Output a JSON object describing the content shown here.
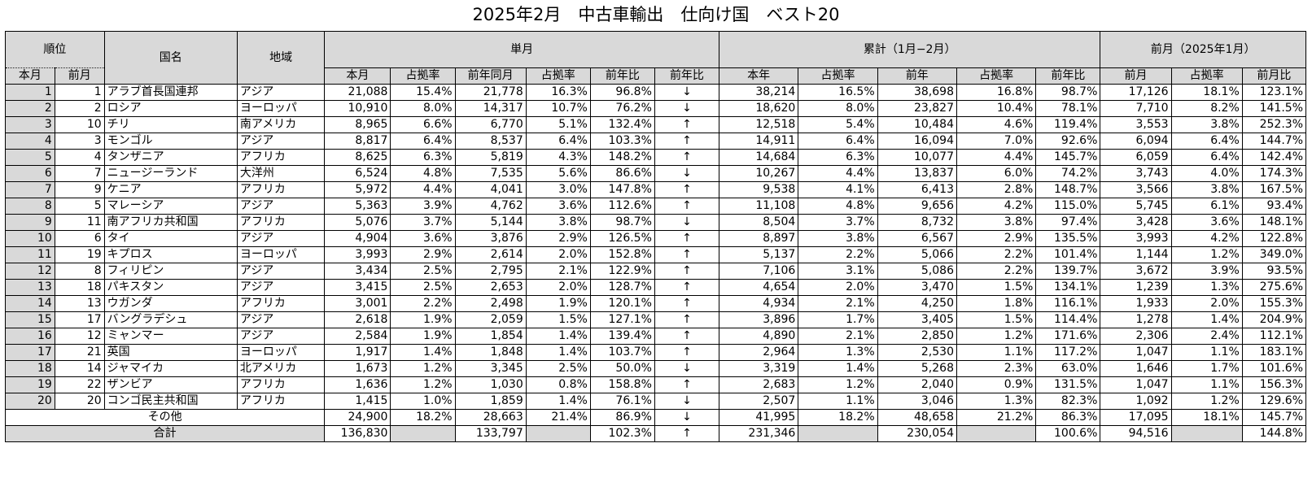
{
  "title": "2025年2月　中古車輸出　仕向け国　ベスト20",
  "headers": {
    "rank": "順位",
    "country": "国名",
    "region": "地域",
    "single_month": "単月",
    "cumulative": "累計（1月−2月）",
    "prev_month_group": "前月（2025年1月）",
    "rank_current": "本月",
    "rank_prev": "前月",
    "sm_current": "本月",
    "sm_share1": "占拠率",
    "sm_prev_year": "前年同月",
    "sm_share2": "占拠率",
    "sm_yoy": "前年比",
    "sm_yoy_arrow": "前年比",
    "cu_current": "本年",
    "cu_share1": "占拠率",
    "cu_prev": "前年",
    "cu_share2": "占拠率",
    "cu_yoy": "前年比",
    "pm_value": "前月",
    "pm_share": "占拠率",
    "pm_ratio": "前月比"
  },
  "rows": [
    {
      "rank": "1",
      "prev_rank": "1",
      "country": "アラブ首長国連邦",
      "region": "アジア",
      "sm_current": "21,088",
      "sm_share1": "15.4%",
      "sm_prev_year": "21,778",
      "sm_share2": "16.3%",
      "sm_yoy": "96.8%",
      "arrow": "↓",
      "cu_current": "38,214",
      "cu_share1": "16.5%",
      "cu_prev": "38,698",
      "cu_share2": "16.8%",
      "cu_yoy": "98.7%",
      "pm_value": "17,126",
      "pm_share": "18.1%",
      "pm_ratio": "123.1%"
    },
    {
      "rank": "2",
      "prev_rank": "2",
      "country": "ロシア",
      "region": "ヨーロッパ",
      "sm_current": "10,910",
      "sm_share1": "8.0%",
      "sm_prev_year": "14,317",
      "sm_share2": "10.7%",
      "sm_yoy": "76.2%",
      "arrow": "↓",
      "cu_current": "18,620",
      "cu_share1": "8.0%",
      "cu_prev": "23,827",
      "cu_share2": "10.4%",
      "cu_yoy": "78.1%",
      "pm_value": "7,710",
      "pm_share": "8.2%",
      "pm_ratio": "141.5%"
    },
    {
      "rank": "3",
      "prev_rank": "10",
      "country": "チリ",
      "region": "南アメリカ",
      "sm_current": "8,965",
      "sm_share1": "6.6%",
      "sm_prev_year": "6,770",
      "sm_share2": "5.1%",
      "sm_yoy": "132.4%",
      "arrow": "↑",
      "cu_current": "12,518",
      "cu_share1": "5.4%",
      "cu_prev": "10,484",
      "cu_share2": "4.6%",
      "cu_yoy": "119.4%",
      "pm_value": "3,553",
      "pm_share": "3.8%",
      "pm_ratio": "252.3%"
    },
    {
      "rank": "4",
      "prev_rank": "3",
      "country": "モンゴル",
      "region": "アジア",
      "sm_current": "8,817",
      "sm_share1": "6.4%",
      "sm_prev_year": "8,537",
      "sm_share2": "6.4%",
      "sm_yoy": "103.3%",
      "arrow": "↑",
      "cu_current": "14,911",
      "cu_share1": "6.4%",
      "cu_prev": "16,094",
      "cu_share2": "7.0%",
      "cu_yoy": "92.6%",
      "pm_value": "6,094",
      "pm_share": "6.4%",
      "pm_ratio": "144.7%"
    },
    {
      "rank": "5",
      "prev_rank": "4",
      "country": "タンザニア",
      "region": "アフリカ",
      "sm_current": "8,625",
      "sm_share1": "6.3%",
      "sm_prev_year": "5,819",
      "sm_share2": "4.3%",
      "sm_yoy": "148.2%",
      "arrow": "↑",
      "cu_current": "14,684",
      "cu_share1": "6.3%",
      "cu_prev": "10,077",
      "cu_share2": "4.4%",
      "cu_yoy": "145.7%",
      "pm_value": "6,059",
      "pm_share": "6.4%",
      "pm_ratio": "142.4%"
    },
    {
      "rank": "6",
      "prev_rank": "7",
      "country": "ニュージーランド",
      "region": "大洋州",
      "sm_current": "6,524",
      "sm_share1": "4.8%",
      "sm_prev_year": "7,535",
      "sm_share2": "5.6%",
      "sm_yoy": "86.6%",
      "arrow": "↓",
      "cu_current": "10,267",
      "cu_share1": "4.4%",
      "cu_prev": "13,837",
      "cu_share2": "6.0%",
      "cu_yoy": "74.2%",
      "pm_value": "3,743",
      "pm_share": "4.0%",
      "pm_ratio": "174.3%"
    },
    {
      "rank": "7",
      "prev_rank": "9",
      "country": "ケニア",
      "region": "アフリカ",
      "sm_current": "5,972",
      "sm_share1": "4.4%",
      "sm_prev_year": "4,041",
      "sm_share2": "3.0%",
      "sm_yoy": "147.8%",
      "arrow": "↑",
      "cu_current": "9,538",
      "cu_share1": "4.1%",
      "cu_prev": "6,413",
      "cu_share2": "2.8%",
      "cu_yoy": "148.7%",
      "pm_value": "3,566",
      "pm_share": "3.8%",
      "pm_ratio": "167.5%"
    },
    {
      "rank": "8",
      "prev_rank": "5",
      "country": "マレーシア",
      "region": "アジア",
      "sm_current": "5,363",
      "sm_share1": "3.9%",
      "sm_prev_year": "4,762",
      "sm_share2": "3.6%",
      "sm_yoy": "112.6%",
      "arrow": "↑",
      "cu_current": "11,108",
      "cu_share1": "4.8%",
      "cu_prev": "9,656",
      "cu_share2": "4.2%",
      "cu_yoy": "115.0%",
      "pm_value": "5,745",
      "pm_share": "6.1%",
      "pm_ratio": "93.4%"
    },
    {
      "rank": "9",
      "prev_rank": "11",
      "country": "南アフリカ共和国",
      "region": "アフリカ",
      "sm_current": "5,076",
      "sm_share1": "3.7%",
      "sm_prev_year": "5,144",
      "sm_share2": "3.8%",
      "sm_yoy": "98.7%",
      "arrow": "↓",
      "cu_current": "8,504",
      "cu_share1": "3.7%",
      "cu_prev": "8,732",
      "cu_share2": "3.8%",
      "cu_yoy": "97.4%",
      "pm_value": "3,428",
      "pm_share": "3.6%",
      "pm_ratio": "148.1%"
    },
    {
      "rank": "10",
      "prev_rank": "6",
      "country": "タイ",
      "region": "アジア",
      "sm_current": "4,904",
      "sm_share1": "3.6%",
      "sm_prev_year": "3,876",
      "sm_share2": "2.9%",
      "sm_yoy": "126.5%",
      "arrow": "↑",
      "cu_current": "8,897",
      "cu_share1": "3.8%",
      "cu_prev": "6,567",
      "cu_share2": "2.9%",
      "cu_yoy": "135.5%",
      "pm_value": "3,993",
      "pm_share": "4.2%",
      "pm_ratio": "122.8%"
    },
    {
      "rank": "11",
      "prev_rank": "19",
      "country": "キプロス",
      "region": "ヨーロッパ",
      "sm_current": "3,993",
      "sm_share1": "2.9%",
      "sm_prev_year": "2,614",
      "sm_share2": "2.0%",
      "sm_yoy": "152.8%",
      "arrow": "↑",
      "cu_current": "5,137",
      "cu_share1": "2.2%",
      "cu_prev": "5,066",
      "cu_share2": "2.2%",
      "cu_yoy": "101.4%",
      "pm_value": "1,144",
      "pm_share": "1.2%",
      "pm_ratio": "349.0%"
    },
    {
      "rank": "12",
      "prev_rank": "8",
      "country": "フィリピン",
      "region": "アジア",
      "sm_current": "3,434",
      "sm_share1": "2.5%",
      "sm_prev_year": "2,795",
      "sm_share2": "2.1%",
      "sm_yoy": "122.9%",
      "arrow": "↑",
      "cu_current": "7,106",
      "cu_share1": "3.1%",
      "cu_prev": "5,086",
      "cu_share2": "2.2%",
      "cu_yoy": "139.7%",
      "pm_value": "3,672",
      "pm_share": "3.9%",
      "pm_ratio": "93.5%"
    },
    {
      "rank": "13",
      "prev_rank": "18",
      "country": "パキスタン",
      "region": "アジア",
      "sm_current": "3,415",
      "sm_share1": "2.5%",
      "sm_prev_year": "2,653",
      "sm_share2": "2.0%",
      "sm_yoy": "128.7%",
      "arrow": "↑",
      "cu_current": "4,654",
      "cu_share1": "2.0%",
      "cu_prev": "3,470",
      "cu_share2": "1.5%",
      "cu_yoy": "134.1%",
      "pm_value": "1,239",
      "pm_share": "1.3%",
      "pm_ratio": "275.6%"
    },
    {
      "rank": "14",
      "prev_rank": "13",
      "country": "ウガンダ",
      "region": "アフリカ",
      "sm_current": "3,001",
      "sm_share1": "2.2%",
      "sm_prev_year": "2,498",
      "sm_share2": "1.9%",
      "sm_yoy": "120.1%",
      "arrow": "↑",
      "cu_current": "4,934",
      "cu_share1": "2.1%",
      "cu_prev": "4,250",
      "cu_share2": "1.8%",
      "cu_yoy": "116.1%",
      "pm_value": "1,933",
      "pm_share": "2.0%",
      "pm_ratio": "155.3%"
    },
    {
      "rank": "15",
      "prev_rank": "17",
      "country": "バングラデシュ",
      "region": "アジア",
      "sm_current": "2,618",
      "sm_share1": "1.9%",
      "sm_prev_year": "2,059",
      "sm_share2": "1.5%",
      "sm_yoy": "127.1%",
      "arrow": "↑",
      "cu_current": "3,896",
      "cu_share1": "1.7%",
      "cu_prev": "3,405",
      "cu_share2": "1.5%",
      "cu_yoy": "114.4%",
      "pm_value": "1,278",
      "pm_share": "1.4%",
      "pm_ratio": "204.9%"
    },
    {
      "rank": "16",
      "prev_rank": "12",
      "country": "ミャンマー",
      "region": "アジア",
      "sm_current": "2,584",
      "sm_share1": "1.9%",
      "sm_prev_year": "1,854",
      "sm_share2": "1.4%",
      "sm_yoy": "139.4%",
      "arrow": "↑",
      "cu_current": "4,890",
      "cu_share1": "2.1%",
      "cu_prev": "2,850",
      "cu_share2": "1.2%",
      "cu_yoy": "171.6%",
      "pm_value": "2,306",
      "pm_share": "2.4%",
      "pm_ratio": "112.1%"
    },
    {
      "rank": "17",
      "prev_rank": "21",
      "country": "英国",
      "region": "ヨーロッパ",
      "sm_current": "1,917",
      "sm_share1": "1.4%",
      "sm_prev_year": "1,848",
      "sm_share2": "1.4%",
      "sm_yoy": "103.7%",
      "arrow": "↑",
      "cu_current": "2,964",
      "cu_share1": "1.3%",
      "cu_prev": "2,530",
      "cu_share2": "1.1%",
      "cu_yoy": "117.2%",
      "pm_value": "1,047",
      "pm_share": "1.1%",
      "pm_ratio": "183.1%"
    },
    {
      "rank": "18",
      "prev_rank": "14",
      "country": "ジャマイカ",
      "region": "北アメリカ",
      "sm_current": "1,673",
      "sm_share1": "1.2%",
      "sm_prev_year": "3,345",
      "sm_share2": "2.5%",
      "sm_yoy": "50.0%",
      "arrow": "↓",
      "cu_current": "3,319",
      "cu_share1": "1.4%",
      "cu_prev": "5,268",
      "cu_share2": "2.3%",
      "cu_yoy": "63.0%",
      "pm_value": "1,646",
      "pm_share": "1.7%",
      "pm_ratio": "101.6%"
    },
    {
      "rank": "19",
      "prev_rank": "22",
      "country": "ザンビア",
      "region": "アフリカ",
      "sm_current": "1,636",
      "sm_share1": "1.2%",
      "sm_prev_year": "1,030",
      "sm_share2": "0.8%",
      "sm_yoy": "158.8%",
      "arrow": "↑",
      "cu_current": "2,683",
      "cu_share1": "1.2%",
      "cu_prev": "2,040",
      "cu_share2": "0.9%",
      "cu_yoy": "131.5%",
      "pm_value": "1,047",
      "pm_share": "1.1%",
      "pm_ratio": "156.3%"
    },
    {
      "rank": "20",
      "prev_rank": "20",
      "country": "コンゴ民主共和国",
      "region": "アフリカ",
      "sm_current": "1,415",
      "sm_share1": "1.0%",
      "sm_prev_year": "1,859",
      "sm_share2": "1.4%",
      "sm_yoy": "76.1%",
      "arrow": "↓",
      "cu_current": "2,507",
      "cu_share1": "1.1%",
      "cu_prev": "3,046",
      "cu_share2": "1.3%",
      "cu_yoy": "82.3%",
      "pm_value": "1,092",
      "pm_share": "1.2%",
      "pm_ratio": "129.6%"
    }
  ],
  "other": {
    "label": "その他",
    "sm_current": "24,900",
    "sm_share1": "18.2%",
    "sm_prev_year": "28,663",
    "sm_share2": "21.4%",
    "sm_yoy": "86.9%",
    "arrow": "↓",
    "cu_current": "41,995",
    "cu_share1": "18.2%",
    "cu_prev": "48,658",
    "cu_share2": "21.2%",
    "cu_yoy": "86.3%",
    "pm_value": "17,095",
    "pm_share": "18.1%",
    "pm_ratio": "145.7%"
  },
  "total": {
    "label": "合計",
    "sm_current": "136,830",
    "sm_prev_year": "133,797",
    "sm_yoy": "102.3%",
    "arrow": "↑",
    "cu_current": "231,346",
    "cu_prev": "230,054",
    "cu_yoy": "100.6%",
    "pm_value": "94,516",
    "pm_ratio": "144.8%"
  },
  "colors": {
    "header_fill": "#d9d9d9",
    "grid_line": "#000000"
  }
}
